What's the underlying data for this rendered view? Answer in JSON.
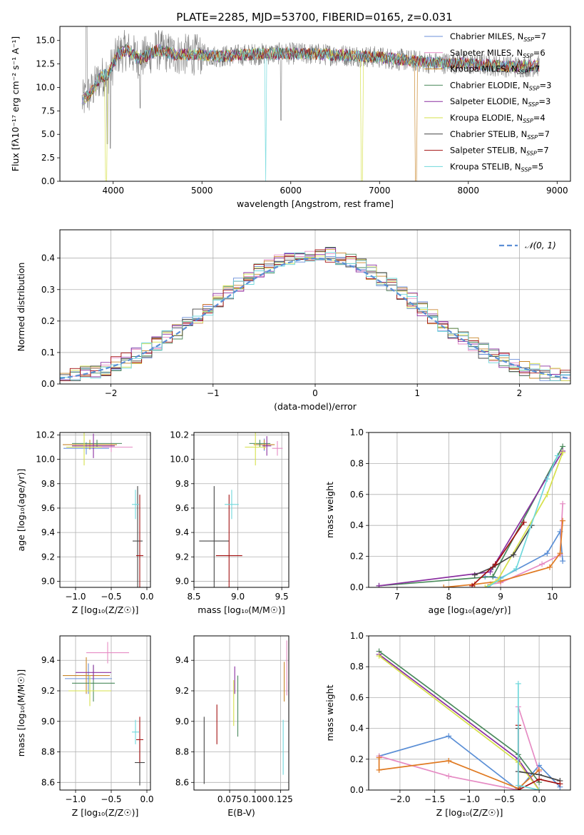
{
  "figure_title": "PLATE=2285, MJD=53700, FIBERID=0165, z=0.031",
  "chart_data": [
    {
      "id": "spectrum",
      "type": "line",
      "title": "PLATE=2285, MJD=53700, FIBERID=0165, z=0.031",
      "xlabel": "wavelength [Angstrom, rest frame]",
      "ylabel": "Flux [fλ10⁻¹⁷ erg cm⁻² s⁻¹ A⁻¹]",
      "xlim": [
        3400,
        9150
      ],
      "ylim": [
        0,
        16.5
      ],
      "xticks": [
        4000,
        5000,
        6000,
        7000,
        8000,
        9000
      ],
      "yticks": [
        0.0,
        2.5,
        5.0,
        7.5,
        10.0,
        12.5,
        15.0
      ],
      "grid": false,
      "legend_loc": "upper right",
      "legend": [
        {
          "label": "Chabrier MILES, N_SSP=7",
          "color": "#6b8fd9"
        },
        {
          "label": "Salpeter MILES, N_SSP=6",
          "color": "#e68cc4"
        },
        {
          "label": "Kroupa MILES, N_SSP=7",
          "color": "#c8862a"
        },
        {
          "label": "Chabrier ELODIE, N_SSP=3",
          "color": "#4a8a5c"
        },
        {
          "label": "Salpeter ELODIE, N_SSP=3",
          "color": "#8a2ea0"
        },
        {
          "label": "Kroupa ELODIE, N_SSP=4",
          "color": "#d6e04a"
        },
        {
          "label": "Chabrier STELIB, N_SSP=7",
          "color": "#444444"
        },
        {
          "label": "Salpeter STELIB, N_SSP=7",
          "color": "#a31010"
        },
        {
          "label": "Kroupa STELIB, N_SSP=5",
          "color": "#6fd8dc"
        }
      ],
      "data_color": "#7a7a7a",
      "series_points": [
        {
          "x": 3650,
          "y": 8.5
        },
        {
          "x": 3750,
          "y": 9.5
        },
        {
          "x": 3850,
          "y": 11.0
        },
        {
          "x": 3950,
          "y": 11.5
        },
        {
          "x": 4050,
          "y": 13.5
        },
        {
          "x": 4150,
          "y": 14.0
        },
        {
          "x": 4300,
          "y": 13.0
        },
        {
          "x": 4500,
          "y": 14.0
        },
        {
          "x": 4700,
          "y": 13.5
        },
        {
          "x": 5000,
          "y": 13.5
        },
        {
          "x": 5200,
          "y": 13.3
        },
        {
          "x": 5500,
          "y": 13.5
        },
        {
          "x": 5800,
          "y": 13.6
        },
        {
          "x": 6100,
          "y": 13.6
        },
        {
          "x": 6400,
          "y": 13.5
        },
        {
          "x": 6700,
          "y": 13.4
        },
        {
          "x": 7000,
          "y": 13.2
        },
        {
          "x": 7300,
          "y": 12.9
        },
        {
          "x": 7600,
          "y": 12.6
        },
        {
          "x": 7900,
          "y": 12.6
        },
        {
          "x": 8200,
          "y": 12.4
        },
        {
          "x": 8500,
          "y": 12.2
        },
        {
          "x": 8800,
          "y": 12.3
        }
      ]
    },
    {
      "id": "residuals",
      "type": "histogram",
      "xlabel": "(data-model)/error",
      "ylabel": "Normed distribution",
      "xlim": [
        -2.5,
        2.5
      ],
      "ylim": [
        0,
        0.49
      ],
      "xticks": [
        -2,
        -1,
        0,
        1,
        2
      ],
      "yticks": [
        0.0,
        0.1,
        0.2,
        0.3,
        0.4
      ],
      "grid": true,
      "legend_loc": "upper right",
      "legend_label": "𝒩(0, 1)",
      "gaussian_color": "#5b8fd6",
      "bin_width": 0.1
    },
    {
      "id": "age_vs_Z",
      "type": "scatter-errorbar",
      "xlabel": "Z [log₁₀(Z/Z☉)]",
      "ylabel": "age  [log₁₀(age/yr)]",
      "xlim": [
        -1.22,
        0.05
      ],
      "ylim": [
        8.95,
        10.22
      ],
      "xticks": [
        -1.0,
        -0.5,
        0.0
      ],
      "yticks": [
        9.0,
        9.2,
        9.4,
        9.6,
        9.8,
        10.0,
        10.2
      ],
      "grid": true,
      "points": [
        {
          "series": "Chabrier MILES",
          "color": "#6b8fd9",
          "x": -0.85,
          "y": 10.09,
          "xerr": 0.32,
          "yerr": 0.05
        },
        {
          "series": "Salpeter MILES",
          "color": "#e68cc4",
          "x": -0.5,
          "y": 10.1,
          "xerr": 0.3,
          "yerr": 0.04
        },
        {
          "series": "Kroupa MILES",
          "color": "#c8862a",
          "x": -0.8,
          "y": 10.12,
          "xerr": 0.38,
          "yerr": 0.04
        },
        {
          "series": "Chabrier ELODIE",
          "color": "#4a8a5c",
          "x": -0.7,
          "y": 10.13,
          "xerr": 0.35,
          "yerr": 0.03
        },
        {
          "series": "Salpeter ELODIE",
          "color": "#8a2ea0",
          "x": -0.75,
          "y": 10.11,
          "xerr": 0.3,
          "yerr": 0.1
        },
        {
          "series": "Kroupa ELODIE",
          "color": "#d6e04a",
          "x": -0.88,
          "y": 10.1,
          "xerr": 0.25,
          "yerr": 0.15
        },
        {
          "series": "Chabrier STELIB",
          "color": "#444444",
          "x": -0.13,
          "y": 9.33,
          "xerr": 0.07,
          "yerr": 0.45
        },
        {
          "series": "Salpeter STELIB",
          "color": "#a31010",
          "x": -0.1,
          "y": 9.21,
          "xerr": 0.05,
          "yerr": 0.5
        },
        {
          "series": "Kroupa STELIB",
          "color": "#6fd8dc",
          "x": -0.16,
          "y": 9.63,
          "xerr": 0.05,
          "yerr": 0.12
        }
      ]
    },
    {
      "id": "age_vs_mass",
      "type": "scatter-errorbar",
      "xlabel": "mass [log₁₀(M/M☉)]",
      "ylabel": "",
      "xlim": [
        8.5,
        9.58
      ],
      "ylim": [
        8.95,
        10.22
      ],
      "xticks": [
        8.5,
        9.0,
        9.5
      ],
      "yticks": [
        9.0,
        9.2,
        9.4,
        9.6,
        9.8,
        10.0,
        10.2
      ],
      "grid": true,
      "points": [
        {
          "series": "Chabrier MILES",
          "color": "#6b8fd9",
          "x": 9.3,
          "y": 10.12,
          "xerr": 0.1,
          "yerr": 0.05
        },
        {
          "series": "Salpeter MILES",
          "color": "#e68cc4",
          "x": 9.45,
          "y": 10.09,
          "xerr": 0.06,
          "yerr": 0.06
        },
        {
          "series": "Kroupa MILES",
          "color": "#c8862a",
          "x": 9.3,
          "y": 10.12,
          "xerr": 0.12,
          "yerr": 0.04
        },
        {
          "series": "Chabrier ELODIE",
          "color": "#4a8a5c",
          "x": 9.25,
          "y": 10.13,
          "xerr": 0.12,
          "yerr": 0.03
        },
        {
          "series": "Salpeter ELODIE",
          "color": "#8a2ea0",
          "x": 9.33,
          "y": 10.11,
          "xerr": 0.05,
          "yerr": 0.08
        },
        {
          "series": "Kroupa ELODIE",
          "color": "#d6e04a",
          "x": 9.2,
          "y": 10.1,
          "xerr": 0.12,
          "yerr": 0.15
        },
        {
          "series": "Chabrier STELIB",
          "color": "#444444",
          "x": 8.73,
          "y": 9.33,
          "xerr": 0.17,
          "yerr": 0.45
        },
        {
          "series": "Salpeter STELIB",
          "color": "#a31010",
          "x": 8.9,
          "y": 9.21,
          "xerr": 0.15,
          "yerr": 0.5
        },
        {
          "series": "Kroupa STELIB",
          "color": "#6fd8dc",
          "x": 8.93,
          "y": 9.63,
          "xerr": 0.08,
          "yerr": 0.12
        }
      ]
    },
    {
      "id": "mass_weight_vs_age",
      "type": "line",
      "xlabel": "age  [log₁₀(age/yr)]",
      "ylabel": "mass weight",
      "xlim": [
        6.45,
        10.35
      ],
      "ylim": [
        0,
        1.0
      ],
      "xticks": [
        7,
        8,
        9,
        10
      ],
      "yticks": [
        0.0,
        0.2,
        0.4,
        0.6,
        0.8,
        1.0
      ],
      "grid": true,
      "series": [
        {
          "name": "Chabrier MILES",
          "color": "#5b8fd6",
          "x": [
            8.7,
            9.0,
            9.9,
            10.15,
            10.2
          ],
          "y": [
            0.07,
            0.06,
            0.22,
            0.36,
            0.17
          ]
        },
        {
          "name": "Salpeter MILES",
          "color": "#e68cc4",
          "x": [
            8.8,
            9.0,
            9.8,
            10.15,
            10.2
          ],
          "y": [
            0.02,
            0.03,
            0.15,
            0.21,
            0.54
          ]
        },
        {
          "name": "Kroupa MILES",
          "color": "#e07a22",
          "x": [
            7.9,
            8.5,
            9.0,
            9.95,
            10.15,
            10.2
          ],
          "y": [
            0.0,
            0.02,
            0.04,
            0.13,
            0.22,
            0.43
          ]
        },
        {
          "name": "Chabrier ELODIE",
          "color": "#4a8a5c",
          "x": [
            6.65,
            8.85,
            10.2
          ],
          "y": [
            0.01,
            0.07,
            0.91
          ]
        },
        {
          "name": "Salpeter ELODIE",
          "color": "#8a2ea0",
          "x": [
            6.65,
            8.8,
            10.2
          ],
          "y": [
            0.01,
            0.1,
            0.88
          ]
        },
        {
          "name": "Kroupa ELODIE",
          "color": "#d6e04a",
          "x": [
            8.7,
            8.95,
            9.9,
            10.2
          ],
          "y": [
            0.0,
            0.05,
            0.6,
            0.87
          ]
        },
        {
          "name": "Chabrier STELIB",
          "color": "#444444",
          "x": [
            8.5,
            8.85,
            9.25,
            9.6
          ],
          "y": [
            0.08,
            0.13,
            0.21,
            0.4
          ]
        },
        {
          "name": "Salpeter STELIB",
          "color": "#a31010",
          "x": [
            8.45,
            8.9,
            9.45
          ],
          "y": [
            0.01,
            0.15,
            0.42
          ]
        },
        {
          "name": "Kroupa STELIB",
          "color": "#6fd8dc",
          "x": [
            8.75,
            9.3,
            9.9,
            10.1
          ],
          "y": [
            0.0,
            0.12,
            0.7,
            0.85
          ]
        }
      ]
    },
    {
      "id": "mass_vs_Z",
      "type": "scatter-errorbar",
      "xlabel": "Z [log₁₀(Z/Z☉)]",
      "ylabel": "mass [log₁₀(M/M☉)]",
      "xlim": [
        -1.22,
        0.05
      ],
      "ylim": [
        8.55,
        9.56
      ],
      "xticks": [
        -1.0,
        -0.5,
        0.0
      ],
      "yticks": [
        8.6,
        8.8,
        9.0,
        9.2,
        9.4
      ],
      "grid": true,
      "points": [
        {
          "series": "Chabrier MILES",
          "color": "#6b8fd9",
          "x": -0.82,
          "y": 9.28,
          "xerr": 0.33,
          "yerr": 0.1
        },
        {
          "series": "Salpeter MILES",
          "color": "#e68cc4",
          "x": -0.55,
          "y": 9.45,
          "xerr": 0.3,
          "yerr": 0.07
        },
        {
          "series": "Kroupa MILES",
          "color": "#c8862a",
          "x": -0.85,
          "y": 9.3,
          "xerr": 0.33,
          "yerr": 0.12
        },
        {
          "series": "Chabrier ELODIE",
          "color": "#4a8a5c",
          "x": -0.75,
          "y": 9.25,
          "xerr": 0.3,
          "yerr": 0.12
        },
        {
          "series": "Salpeter ELODIE",
          "color": "#8a2ea0",
          "x": -0.75,
          "y": 9.32,
          "xerr": 0.25,
          "yerr": 0.05
        },
        {
          "series": "Kroupa ELODIE",
          "color": "#d6e04a",
          "x": -0.8,
          "y": 9.2,
          "xerr": 0.3,
          "yerr": 0.1
        },
        {
          "series": "Chabrier STELIB",
          "color": "#444444",
          "x": -0.1,
          "y": 8.73,
          "xerr": 0.07,
          "yerr": 0.15
        },
        {
          "series": "Salpeter STELIB",
          "color": "#a31010",
          "x": -0.1,
          "y": 8.88,
          "xerr": 0.05,
          "yerr": 0.15
        },
        {
          "series": "Kroupa STELIB",
          "color": "#6fd8dc",
          "x": -0.16,
          "y": 8.93,
          "xerr": 0.05,
          "yerr": 0.08
        }
      ]
    },
    {
      "id": "mass_vs_EBV",
      "type": "errorbar",
      "xlabel": "E(B-V)",
      "ylabel": "",
      "xlim": [
        0.04,
        0.133
      ],
      "ylim": [
        8.55,
        9.56
      ],
      "xticks": [
        0.075,
        0.1,
        0.125
      ],
      "xtick_labels": [
        "0.075",
        "0.100",
        "0.125"
      ],
      "yticks": [
        8.6,
        8.8,
        9.0,
        9.2,
        9.4
      ],
      "grid": true,
      "points": [
        {
          "series": "Chabrier STELIB",
          "color": "#444444",
          "x": 0.05,
          "y": 8.81,
          "yerr": 0.22
        },
        {
          "series": "Salpeter STELIB",
          "color": "#a31010",
          "x": 0.0625,
          "y": 8.98,
          "yerr": 0.13
        },
        {
          "series": "Kroupa ELODIE",
          "color": "#d6e04a",
          "x": 0.079,
          "y": 9.12,
          "yerr": 0.15
        },
        {
          "series": "Salpeter ELODIE",
          "color": "#8a2ea0",
          "x": 0.08,
          "y": 9.27,
          "yerr": 0.09
        },
        {
          "series": "Chabrier ELODIE",
          "color": "#4a8a5c",
          "x": 0.083,
          "y": 9.1,
          "yerr": 0.2
        },
        {
          "series": "Kroupa STELIB",
          "color": "#6fd8dc",
          "x": 0.1275,
          "y": 8.83,
          "yerr": 0.18
        },
        {
          "series": "Kroupa MILES",
          "color": "#c8862a",
          "x": 0.1285,
          "y": 9.26,
          "yerr": 0.13
        },
        {
          "series": "Salpeter MILES",
          "color": "#e68cc4",
          "x": 0.131,
          "y": 9.35,
          "yerr": 0.18
        },
        {
          "series": "Chabrier MILES",
          "color": "#6b8fd9",
          "x": 0.133,
          "y": 9.2,
          "yerr": 0.06
        }
      ]
    },
    {
      "id": "mass_weight_vs_Z",
      "type": "line",
      "xlabel": "Z [log₁₀(Z/Z☉)]",
      "ylabel": "mass weight",
      "xlim": [
        -2.45,
        0.45
      ],
      "ylim": [
        0,
        1.0
      ],
      "xticks": [
        -2.0,
        -1.5,
        -1.0,
        -0.5,
        0.0
      ],
      "yticks": [
        0.0,
        0.2,
        0.4,
        0.6,
        0.8,
        1.0
      ],
      "grid": true,
      "series": [
        {
          "name": "Chabrier MILES",
          "color": "#5b8fd6",
          "x": [
            -2.3,
            -1.3,
            -0.3,
            0.0,
            0.3
          ],
          "y": [
            0.22,
            0.35,
            0.0,
            0.16,
            0.02
          ]
        },
        {
          "name": "Salpeter MILES",
          "color": "#e68cc4",
          "x": [
            -2.3,
            -1.3,
            -0.3,
            -0.3,
            0.0
          ],
          "y": [
            0.22,
            0.09,
            0.0,
            0.54,
            0.12
          ]
        },
        {
          "name": "Kroupa MILES",
          "color": "#e07a22",
          "x": [
            -2.3,
            -2.3,
            -1.3,
            -0.3,
            0.0
          ],
          "y": [
            0.21,
            0.13,
            0.19,
            0.01,
            0.13
          ]
        },
        {
          "name": "Chabrier ELODIE",
          "color": "#4a8a5c",
          "x": [
            -2.3,
            -0.3,
            0.0
          ],
          "y": [
            0.9,
            0.23,
            0.05
          ]
        },
        {
          "name": "Salpeter ELODIE",
          "color": "#8a2ea0",
          "x": [
            -2.3,
            -0.3,
            0.0
          ],
          "y": [
            0.88,
            0.2,
            0.0
          ]
        },
        {
          "name": "Kroupa ELODIE",
          "color": "#d6e04a",
          "x": [
            -2.3,
            -0.3,
            0.0
          ],
          "y": [
            0.87,
            0.18,
            0.0
          ]
        },
        {
          "name": "Chabrier STELIB",
          "color": "#444444",
          "x": [
            -0.3,
            -0.3,
            0.0,
            0.3
          ],
          "y": [
            0.4,
            0.12,
            0.1,
            0.06
          ]
        },
        {
          "name": "Salpeter STELIB",
          "color": "#a31010",
          "x": [
            -0.3,
            -0.3,
            0.0,
            0.3
          ],
          "y": [
            0.42,
            0.0,
            0.07,
            0.04
          ]
        },
        {
          "name": "Kroupa STELIB",
          "color": "#6fd8dc",
          "x": [
            -0.3,
            -0.3,
            0.0
          ],
          "y": [
            0.69,
            0.03,
            0.0
          ]
        }
      ]
    }
  ]
}
